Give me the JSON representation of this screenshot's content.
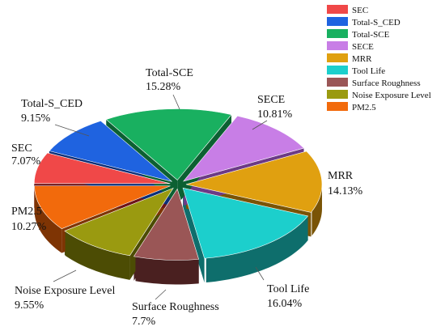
{
  "chart_data": {
    "type": "pie",
    "style": "3d-exploded",
    "legend_position": "top-right",
    "slices": [
      {
        "label": "SEC",
        "value": 7.07,
        "display": "7.07%",
        "color": "#f04848",
        "side_color": "#6e1418"
      },
      {
        "label": "Total-S_CED",
        "value": 9.15,
        "display": "9.15%",
        "color": "#1f63e0",
        "side_color": "#0c2f78"
      },
      {
        "label": "Total-SCE",
        "value": 15.28,
        "display": "15.28%",
        "color": "#19b060",
        "side_color": "#0c6032"
      },
      {
        "label": "SECE",
        "value": 10.81,
        "display": "10.81%",
        "color": "#c87ee6",
        "side_color": "#6c3a86"
      },
      {
        "label": "MRR",
        "value": 14.13,
        "display": "14.13%",
        "color": "#e0a010",
        "side_color": "#7a5406"
      },
      {
        "label": "Tool Life",
        "value": 16.04,
        "display": "16.04%",
        "color": "#1ccfcc",
        "side_color": "#0e6e6c"
      },
      {
        "label": "Surface Roughness",
        "value": 7.7,
        "display": "7.7%",
        "color": "#9a5656",
        "side_color": "#4a2020"
      },
      {
        "label": "Noise Exposure Level",
        "value": 9.55,
        "display": "9.55%",
        "color": "#9a9a10",
        "side_color": "#4c4c04"
      },
      {
        "label": "PM2.5",
        "value": 10.27,
        "display": "10.27%",
        "color": "#f26a0c",
        "side_color": "#7e3404"
      }
    ]
  }
}
